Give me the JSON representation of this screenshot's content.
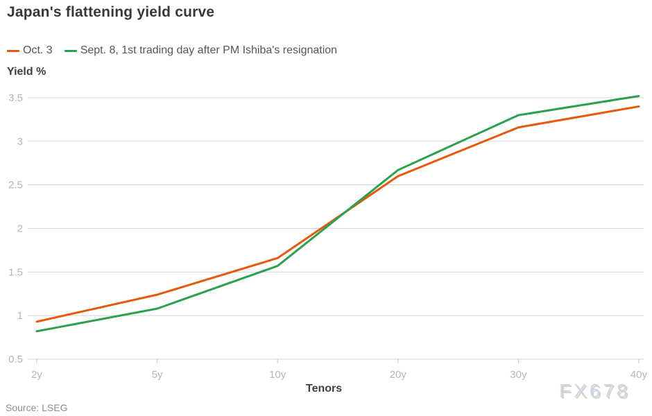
{
  "header": {
    "title": "Japan's flattening yield curve"
  },
  "legend": [
    {
      "label": "Oct. 3",
      "color": "#e8580c"
    },
    {
      "label": "Sept. 8, 1st trading day after PM Ishiba's resignation",
      "color": "#2aa14e"
    }
  ],
  "axes": {
    "y_title": "Yield %",
    "x_title": "Tenors"
  },
  "footer": {
    "source": "Source: LSEG",
    "watermark": "FX678"
  },
  "colors": {
    "gridline": "#d4d4d4",
    "tick_mark": "#c4c4c4",
    "tick_text": "#b5b5b5"
  },
  "chart_data": {
    "type": "line",
    "title": "Japan's flattening yield curve",
    "xlabel": "Tenors",
    "ylabel": "Yield %",
    "categories": [
      "2y",
      "5y",
      "10y",
      "20y",
      "30y",
      "40y"
    ],
    "series": [
      {
        "name": "Oct. 3",
        "color": "#e8580c",
        "values": [
          0.93,
          1.24,
          1.66,
          2.6,
          3.16,
          3.4
        ]
      },
      {
        "name": "Sept. 8, 1st trading day after PM Ishiba's resignation",
        "color": "#2aa14e",
        "values": [
          0.82,
          1.08,
          1.57,
          2.67,
          3.3,
          3.52
        ]
      }
    ],
    "y_ticks": [
      0.5,
      1,
      1.5,
      2,
      2.5,
      3,
      3.5
    ],
    "ylim": [
      0.5,
      3.5
    ],
    "grid": true,
    "legend_position": "top-left"
  }
}
